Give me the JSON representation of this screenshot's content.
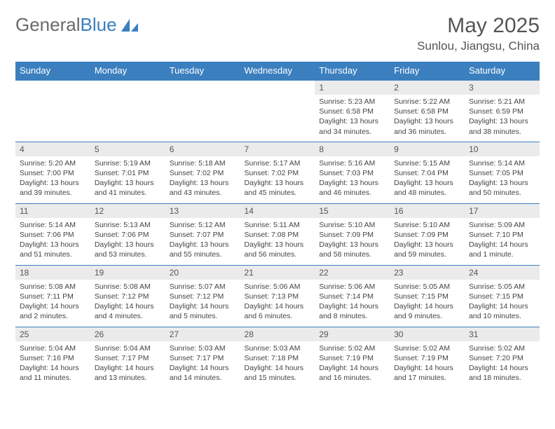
{
  "brand": {
    "word1": "General",
    "word2": "Blue"
  },
  "title": "May 2025",
  "location": "Sunlou, Jiangsu, China",
  "colors": {
    "header_bg": "#3b7fbf",
    "header_text": "#ffffff",
    "daynum_bg": "#ebebeb",
    "border": "#3b7fbf",
    "text": "#444444",
    "brand_gray": "#6a6a6a",
    "brand_blue": "#3b7fbf"
  },
  "daynames": [
    "Sunday",
    "Monday",
    "Tuesday",
    "Wednesday",
    "Thursday",
    "Friday",
    "Saturday"
  ],
  "weeks": [
    [
      null,
      null,
      null,
      null,
      {
        "n": "1",
        "sr": "5:23 AM",
        "ss": "6:58 PM",
        "dl": "13 hours and 34 minutes."
      },
      {
        "n": "2",
        "sr": "5:22 AM",
        "ss": "6:58 PM",
        "dl": "13 hours and 36 minutes."
      },
      {
        "n": "3",
        "sr": "5:21 AM",
        "ss": "6:59 PM",
        "dl": "13 hours and 38 minutes."
      }
    ],
    [
      {
        "n": "4",
        "sr": "5:20 AM",
        "ss": "7:00 PM",
        "dl": "13 hours and 39 minutes."
      },
      {
        "n": "5",
        "sr": "5:19 AM",
        "ss": "7:01 PM",
        "dl": "13 hours and 41 minutes."
      },
      {
        "n": "6",
        "sr": "5:18 AM",
        "ss": "7:02 PM",
        "dl": "13 hours and 43 minutes."
      },
      {
        "n": "7",
        "sr": "5:17 AM",
        "ss": "7:02 PM",
        "dl": "13 hours and 45 minutes."
      },
      {
        "n": "8",
        "sr": "5:16 AM",
        "ss": "7:03 PM",
        "dl": "13 hours and 46 minutes."
      },
      {
        "n": "9",
        "sr": "5:15 AM",
        "ss": "7:04 PM",
        "dl": "13 hours and 48 minutes."
      },
      {
        "n": "10",
        "sr": "5:14 AM",
        "ss": "7:05 PM",
        "dl": "13 hours and 50 minutes."
      }
    ],
    [
      {
        "n": "11",
        "sr": "5:14 AM",
        "ss": "7:06 PM",
        "dl": "13 hours and 51 minutes."
      },
      {
        "n": "12",
        "sr": "5:13 AM",
        "ss": "7:06 PM",
        "dl": "13 hours and 53 minutes."
      },
      {
        "n": "13",
        "sr": "5:12 AM",
        "ss": "7:07 PM",
        "dl": "13 hours and 55 minutes."
      },
      {
        "n": "14",
        "sr": "5:11 AM",
        "ss": "7:08 PM",
        "dl": "13 hours and 56 minutes."
      },
      {
        "n": "15",
        "sr": "5:10 AM",
        "ss": "7:09 PM",
        "dl": "13 hours and 58 minutes."
      },
      {
        "n": "16",
        "sr": "5:10 AM",
        "ss": "7:09 PM",
        "dl": "13 hours and 59 minutes."
      },
      {
        "n": "17",
        "sr": "5:09 AM",
        "ss": "7:10 PM",
        "dl": "14 hours and 1 minute."
      }
    ],
    [
      {
        "n": "18",
        "sr": "5:08 AM",
        "ss": "7:11 PM",
        "dl": "14 hours and 2 minutes."
      },
      {
        "n": "19",
        "sr": "5:08 AM",
        "ss": "7:12 PM",
        "dl": "14 hours and 4 minutes."
      },
      {
        "n": "20",
        "sr": "5:07 AM",
        "ss": "7:12 PM",
        "dl": "14 hours and 5 minutes."
      },
      {
        "n": "21",
        "sr": "5:06 AM",
        "ss": "7:13 PM",
        "dl": "14 hours and 6 minutes."
      },
      {
        "n": "22",
        "sr": "5:06 AM",
        "ss": "7:14 PM",
        "dl": "14 hours and 8 minutes."
      },
      {
        "n": "23",
        "sr": "5:05 AM",
        "ss": "7:15 PM",
        "dl": "14 hours and 9 minutes."
      },
      {
        "n": "24",
        "sr": "5:05 AM",
        "ss": "7:15 PM",
        "dl": "14 hours and 10 minutes."
      }
    ],
    [
      {
        "n": "25",
        "sr": "5:04 AM",
        "ss": "7:16 PM",
        "dl": "14 hours and 11 minutes."
      },
      {
        "n": "26",
        "sr": "5:04 AM",
        "ss": "7:17 PM",
        "dl": "14 hours and 13 minutes."
      },
      {
        "n": "27",
        "sr": "5:03 AM",
        "ss": "7:17 PM",
        "dl": "14 hours and 14 minutes."
      },
      {
        "n": "28",
        "sr": "5:03 AM",
        "ss": "7:18 PM",
        "dl": "14 hours and 15 minutes."
      },
      {
        "n": "29",
        "sr": "5:02 AM",
        "ss": "7:19 PM",
        "dl": "14 hours and 16 minutes."
      },
      {
        "n": "30",
        "sr": "5:02 AM",
        "ss": "7:19 PM",
        "dl": "14 hours and 17 minutes."
      },
      {
        "n": "31",
        "sr": "5:02 AM",
        "ss": "7:20 PM",
        "dl": "14 hours and 18 minutes."
      }
    ]
  ],
  "labels": {
    "sunrise": "Sunrise: ",
    "sunset": "Sunset: ",
    "daylight": "Daylight: "
  }
}
